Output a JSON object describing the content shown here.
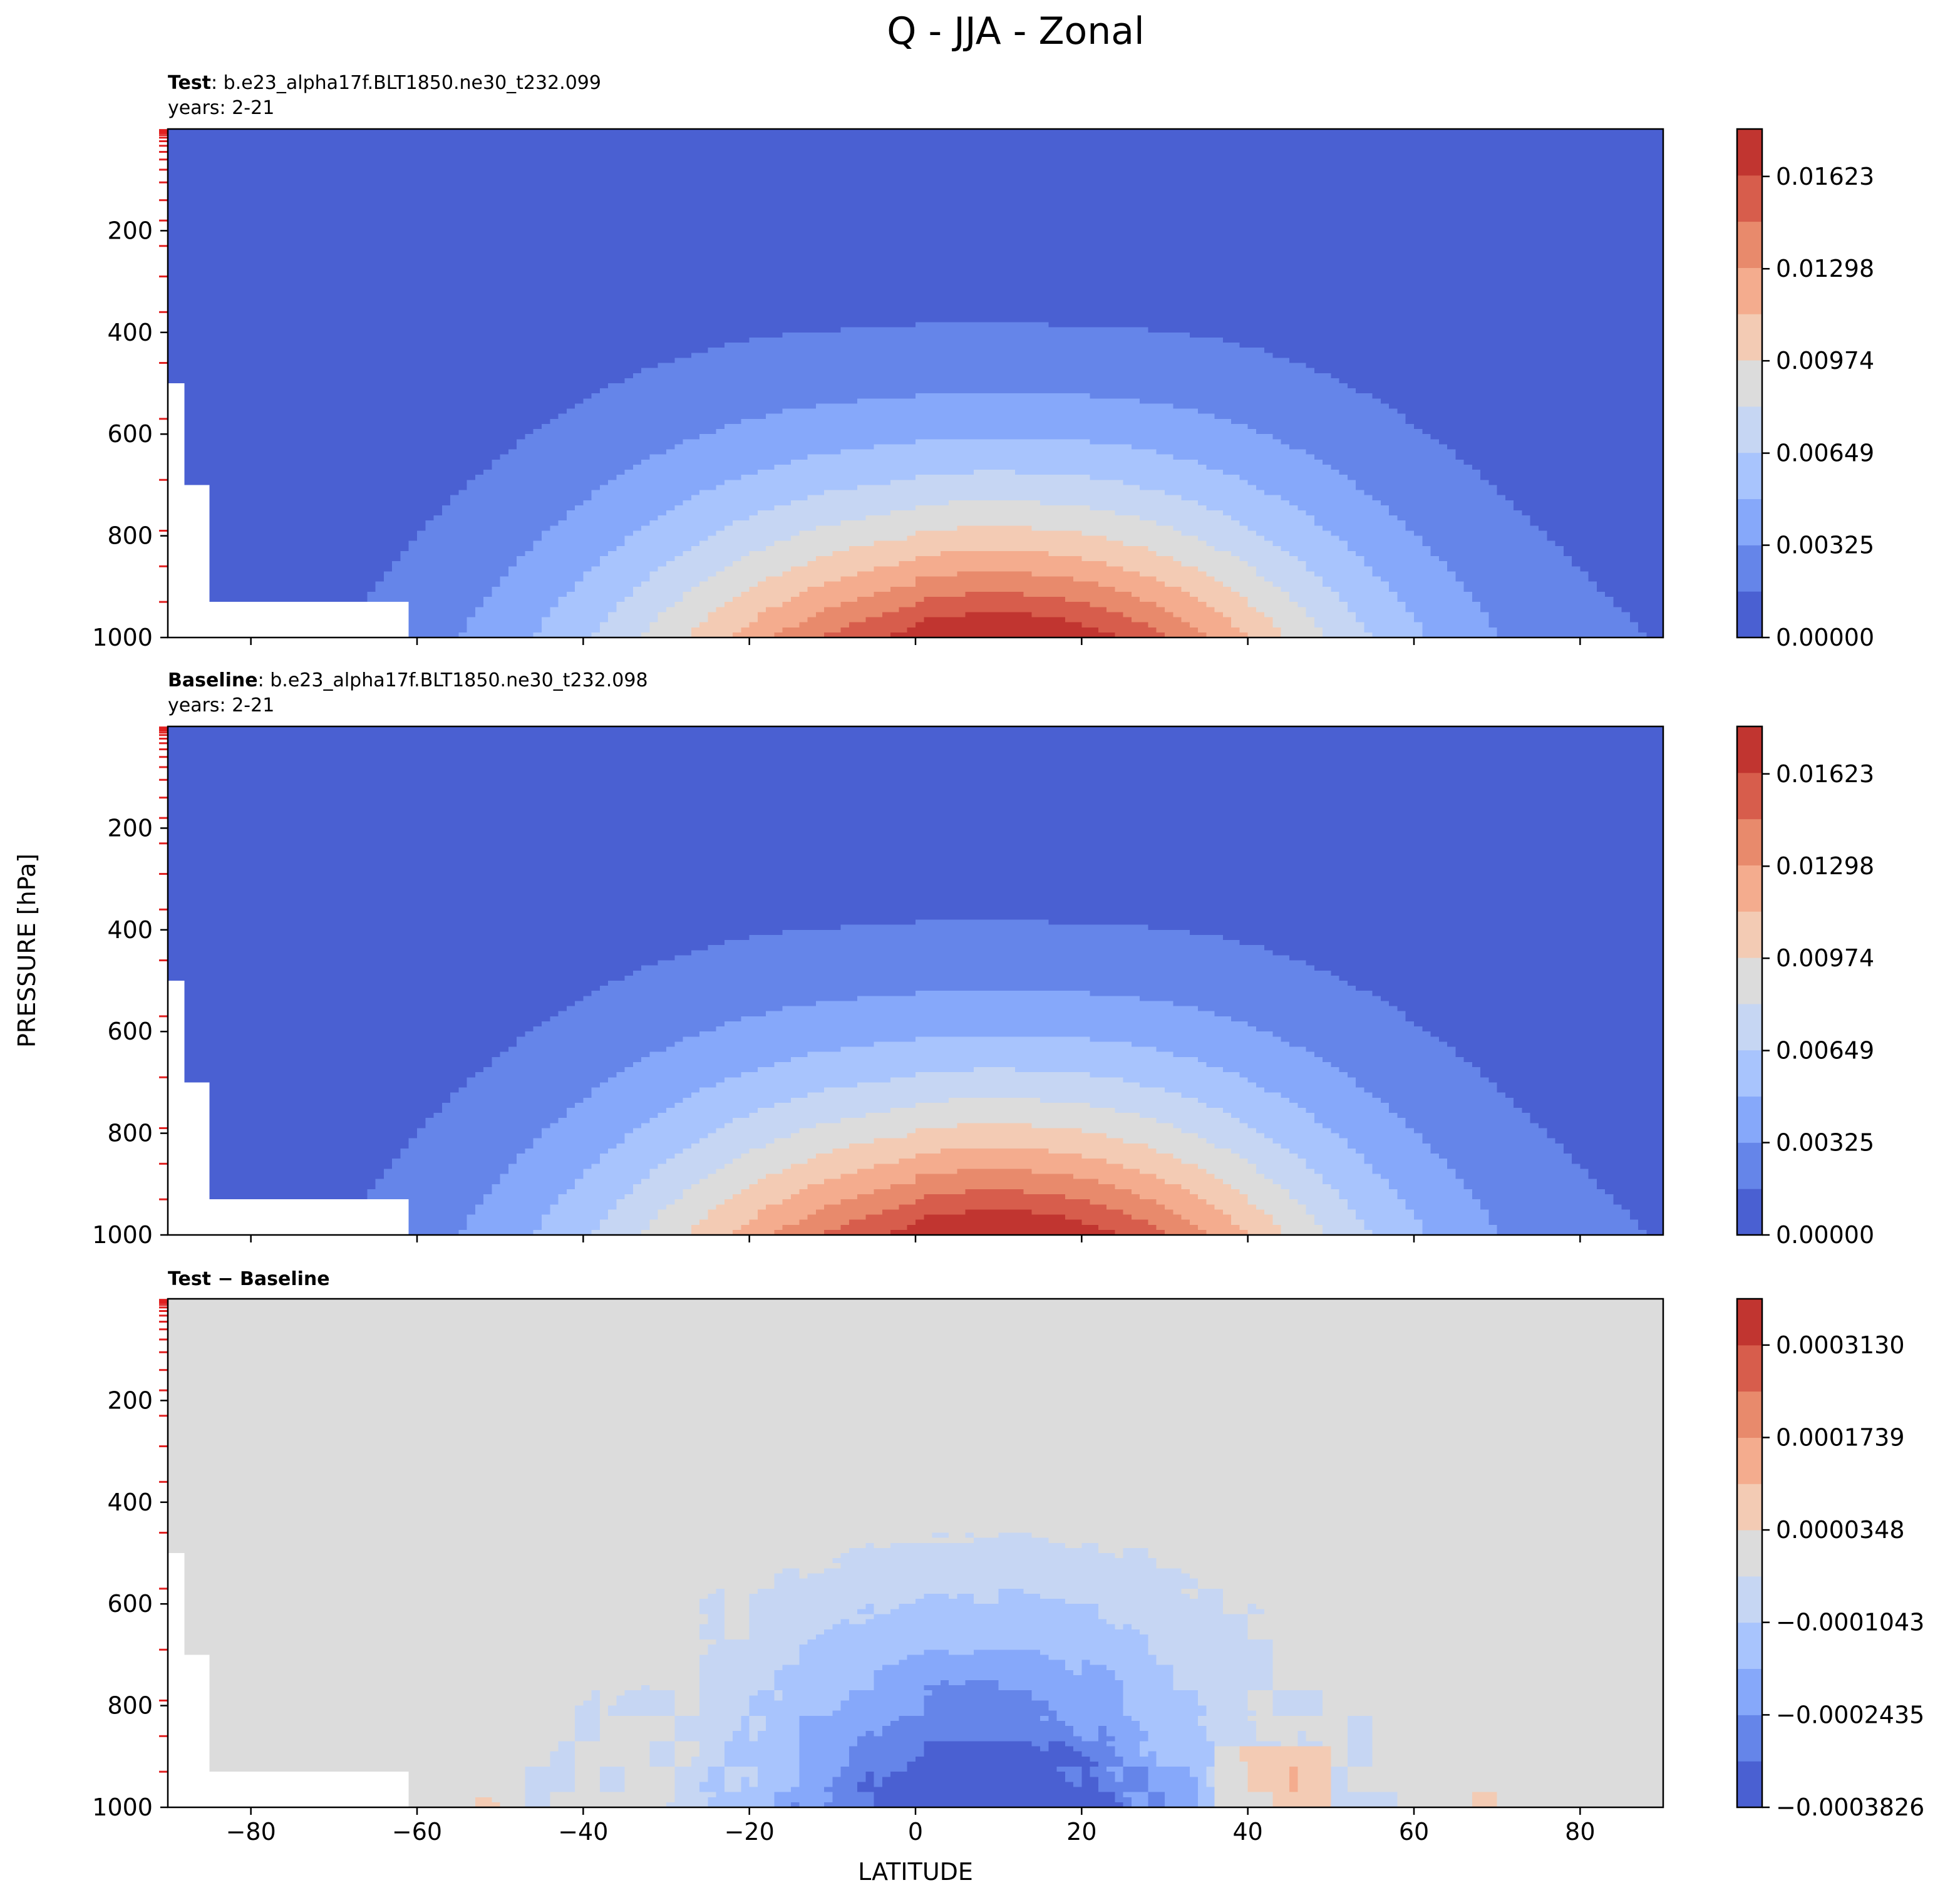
{
  "figure": {
    "title": "Q - JJA - Zonal",
    "ylabel": "PRESSURE [hPa]",
    "xlabel": "LATITUDE"
  },
  "chart_data": [
    {
      "type": "contour",
      "panel": "test",
      "header_bold": "Test",
      "header_rest": ": b.e23_alpha17f.BLT1850.ne30_t232.099",
      "subheader": "years: 2-21",
      "xlim": [
        -90,
        90
      ],
      "ylim": [
        1000,
        0
      ],
      "y_inverted": true,
      "xticks": [
        -80,
        -60,
        -40,
        -20,
        0,
        20,
        40,
        60,
        80
      ],
      "yticks": [
        200,
        400,
        600,
        800,
        1000
      ],
      "colorbar_ticks": [
        "0.00000",
        "0.00325",
        "0.00649",
        "0.00974",
        "0.01298",
        "0.01623"
      ],
      "colorbar_tick_values": [
        0.0,
        0.00325,
        0.00649,
        0.00974,
        0.01298,
        0.01623
      ],
      "levels_range": [
        0.0,
        0.0179
      ],
      "level_count": 11,
      "colormap": "coolwarm"
    },
    {
      "type": "contour",
      "panel": "baseline",
      "header_bold": "Baseline",
      "header_rest": ": b.e23_alpha17f.BLT1850.ne30_t232.098",
      "subheader": "years: 2-21",
      "xlim": [
        -90,
        90
      ],
      "ylim": [
        1000,
        0
      ],
      "y_inverted": true,
      "xticks": [
        -80,
        -60,
        -40,
        -20,
        0,
        20,
        40,
        60,
        80
      ],
      "yticks": [
        200,
        400,
        600,
        800,
        1000
      ],
      "colorbar_ticks": [
        "0.00000",
        "0.00325",
        "0.00649",
        "0.00974",
        "0.01298",
        "0.01623"
      ],
      "colorbar_tick_values": [
        0.0,
        0.00325,
        0.00649,
        0.00974,
        0.01298,
        0.01623
      ],
      "levels_range": [
        0.0,
        0.0179
      ],
      "level_count": 11,
      "colormap": "coolwarm"
    },
    {
      "type": "contour",
      "panel": "difference",
      "header_bold": "Test − Baseline",
      "header_rest": "",
      "subheader": "",
      "xlim": [
        -90,
        90
      ],
      "ylim": [
        1000,
        0
      ],
      "y_inverted": true,
      "xticks": [
        -80,
        -60,
        -40,
        -20,
        0,
        20,
        40,
        60,
        80
      ],
      "xticklabels": [
        "−80",
        "−60",
        "−40",
        "−20",
        "0",
        "20",
        "40",
        "60",
        "80"
      ],
      "yticks": [
        200,
        400,
        600,
        800,
        1000
      ],
      "colorbar_ticks": [
        "−0.0003826",
        "−0.0002435",
        "−0.0001043",
        "0.0000348",
        "0.0001739",
        "0.0003130"
      ],
      "colorbar_tick_values": [
        -0.0003826,
        -0.0002435,
        -0.0001043,
        3.48e-05,
        0.0001739,
        0.000313
      ],
      "levels_range": [
        -0.0003826,
        0.0003826
      ],
      "level_count": 11,
      "colormap": "coolwarm"
    }
  ],
  "colors": {
    "coolwarm_11": [
      "#4a60d2",
      "#6585e9",
      "#86a8fa",
      "#a8c4fd",
      "#c6d6f3",
      "#dcdcdc",
      "#f3cbb4",
      "#f4ac8e",
      "#e88a6c",
      "#d75d4c",
      "#c13530"
    ],
    "missing": "#ffffff",
    "level_tick_marks": "#e02020"
  }
}
